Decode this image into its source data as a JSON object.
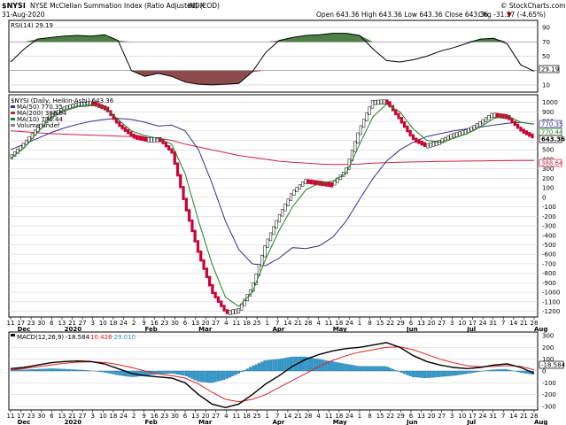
{
  "header": {
    "symbol": "$NYSI",
    "name": "NYSE McClellan Summation Index (Ratio Adjusted) (EOD)",
    "exchange": "INDX",
    "date": "31-Aug-2020",
    "ohlc": "Open 643.36  High 643.36  Low 643.36  Close 643.36",
    "chg": "Chg -31.37 (-4.65%)",
    "chg_arrow": "▼",
    "credit": "© StockCharts.com"
  },
  "rsi_panel": {
    "legend": "RSI(14) 29.19",
    "current_value_label": "29.19",
    "ticks": [
      90,
      70,
      50,
      30,
      10
    ],
    "overbought": 70,
    "oversold": 30
  },
  "price_panel": {
    "legend_main": "$NYSI (Daily, Heikin-Ashi) 643.36",
    "legend_ma50": "MA(50) 770.35",
    "legend_ma200": "MA(200) 388.64",
    "legend_ma10": "MA(10) 770.44",
    "legend_volume": "Volume undef",
    "labels": {
      "ma10": "770.44",
      "ma50": "770.35",
      "last": "643.36",
      "ma200": "388.64"
    },
    "ticks": [
      1000,
      900,
      800,
      700,
      600,
      500,
      400,
      300,
      200,
      100,
      0,
      -100,
      -200,
      -300,
      -400,
      -500,
      -600,
      -700,
      -800,
      -900,
      -1000,
      -1100,
      -1200
    ],
    "ylim": [
      -1260,
      1080
    ]
  },
  "macd_panel": {
    "legend_prefix": "MACD(12,26,9)",
    "macd_value": "-18.584",
    "signal_value": "10.426",
    "hist_value": "-29.010",
    "current_label": "-18.584",
    "ticks": [
      300,
      200,
      100,
      0,
      -100,
      -200,
      -300
    ],
    "ylim": [
      -330,
      330
    ]
  },
  "x_axis": {
    "day_labels": [
      "11",
      "17",
      "23",
      "30",
      "6",
      "13",
      "21",
      "27",
      "3",
      "10",
      "18",
      "24",
      "2",
      "9",
      "16",
      "23",
      "30",
      "6",
      "13",
      "20",
      "27",
      "4",
      "11",
      "18",
      "25",
      "1",
      "7",
      "14",
      "21",
      "28",
      "4",
      "11",
      "18",
      "24",
      "1",
      "8",
      "15",
      "22",
      "29",
      "6",
      "13",
      "20",
      "27",
      "3",
      "10",
      "17",
      "24",
      "31",
      "7",
      "14",
      "21",
      "28"
    ],
    "day_labels_macd": [
      "11",
      "17",
      "23",
      "30",
      "6",
      "13",
      "21",
      "27",
      "3",
      "10",
      "18",
      "24",
      "2",
      "9",
      "16",
      "23",
      "30",
      "6",
      "13",
      "20",
      "27",
      "4",
      "11",
      "18",
      "25",
      "1",
      "7",
      "14",
      "21",
      "28",
      "4",
      "11",
      "18",
      "24",
      "1",
      "8",
      "15",
      "22",
      "29",
      "6",
      "13",
      "20",
      "27",
      "3",
      "10",
      "17",
      "24",
      "31",
      "7",
      "14",
      "21",
      "28"
    ],
    "months": [
      "Dec",
      "2020",
      "Feb",
      "Mar",
      "Apr",
      "May",
      "Jun",
      "Jul",
      "Aug"
    ],
    "months_macd": [
      "Dec",
      "2020",
      "Feb",
      "Mar",
      "Apr",
      "May",
      "Jun",
      "Jul",
      "Aug"
    ]
  },
  "colors": {
    "up_candle": "#ffffff",
    "down_candle": "#cc0033",
    "ma10": "#208020",
    "ma50": "#303090",
    "ma200": "#cc2244",
    "rsi_fill_over": "#4f7f46",
    "rsi_fill_under": "#8c4a4a",
    "macd_line": "#000000",
    "signal_line": "#dd2222",
    "histogram": "#3399cc"
  },
  "chart_data": [
    {
      "type": "line",
      "name": "RSI(14)",
      "x": [
        "2019-12-05",
        "2019-12-12",
        "2019-12-19",
        "2019-12-26",
        "2020-01-02",
        "2020-01-09",
        "2020-01-16",
        "2020-01-23",
        "2020-01-30",
        "2020-02-06",
        "2020-02-13",
        "2020-02-20",
        "2020-02-27",
        "2020-03-05",
        "2020-03-12",
        "2020-03-19",
        "2020-03-26",
        "2020-04-02",
        "2020-04-09",
        "2020-04-16",
        "2020-04-23",
        "2020-04-30",
        "2020-05-07",
        "2020-05-14",
        "2020-05-21",
        "2020-05-28",
        "2020-06-04",
        "2020-06-11",
        "2020-06-18",
        "2020-06-25",
        "2020-07-02",
        "2020-07-09",
        "2020-07-16",
        "2020-07-23",
        "2020-07-30",
        "2020-08-06",
        "2020-08-13",
        "2020-08-20",
        "2020-08-27",
        "2020-08-31"
      ],
      "values": [
        42,
        60,
        74,
        76,
        78,
        79,
        78,
        80,
        72,
        30,
        22,
        26,
        22,
        14,
        11,
        10,
        11,
        12,
        28,
        55,
        72,
        76,
        79,
        80,
        82,
        82,
        79,
        60,
        44,
        42,
        45,
        50,
        57,
        62,
        68,
        74,
        75,
        67,
        38,
        29.19
      ],
      "ylim": [
        0,
        100
      ]
    },
    {
      "type": "line",
      "name": "$NYSI (Daily, Heikin-Ashi)",
      "x": [
        "2019-12-05",
        "2019-12-12",
        "2019-12-19",
        "2019-12-26",
        "2020-01-02",
        "2020-01-09",
        "2020-01-16",
        "2020-01-23",
        "2020-01-30",
        "2020-02-06",
        "2020-02-13",
        "2020-02-20",
        "2020-02-27",
        "2020-03-05",
        "2020-03-12",
        "2020-03-19",
        "2020-03-26",
        "2020-04-02",
        "2020-04-09",
        "2020-04-16",
        "2020-04-23",
        "2020-04-30",
        "2020-05-07",
        "2020-05-14",
        "2020-05-21",
        "2020-05-28",
        "2020-06-04",
        "2020-06-11",
        "2020-06-18",
        "2020-06-25",
        "2020-07-02",
        "2020-07-09",
        "2020-07-16",
        "2020-07-23",
        "2020-07-30",
        "2020-08-06",
        "2020-08-13",
        "2020-08-20",
        "2020-08-27",
        "2020-08-31"
      ],
      "series": [
        {
          "name": "$NYSI",
          "values": [
            440,
            580,
            740,
            870,
            950,
            990,
            1000,
            940,
            760,
            650,
            620,
            620,
            470,
            -100,
            -600,
            -1000,
            -1210,
            -1180,
            -950,
            -500,
            -200,
            50,
            180,
            160,
            140,
            280,
            700,
            1010,
            1020,
            830,
            620,
            550,
            590,
            660,
            700,
            780,
            880,
            860,
            720,
            643.36
          ]
        },
        {
          "name": "MA(10)",
          "values": [
            410,
            520,
            680,
            840,
            920,
            960,
            975,
            950,
            820,
            700,
            650,
            620,
            560,
            250,
            -250,
            -700,
            -1050,
            -1150,
            -1000,
            -650,
            -350,
            -100,
            80,
            150,
            170,
            250,
            560,
            850,
            980,
            900,
            720,
            600,
            580,
            620,
            670,
            740,
            830,
            860,
            790,
            770.44
          ]
        },
        {
          "name": "MA(50)",
          "values": [
            500,
            560,
            620,
            680,
            730,
            770,
            800,
            820,
            830,
            820,
            790,
            750,
            760,
            700,
            500,
            150,
            -250,
            -550,
            -700,
            -720,
            -640,
            -530,
            -540,
            -510,
            -420,
            -250,
            -20,
            200,
            380,
            500,
            580,
            640,
            670,
            700,
            720,
            740,
            760,
            780,
            790,
            770.35
          ]
        },
        {
          "name": "MA(200)",
          "values": [
            700,
            690,
            680,
            670,
            665,
            660,
            655,
            650,
            645,
            640,
            630,
            620,
            600,
            560,
            530,
            500,
            470,
            440,
            420,
            400,
            380,
            370,
            360,
            350,
            345,
            345,
            350,
            360,
            365,
            370,
            372,
            375,
            378,
            380,
            382,
            384,
            385,
            386,
            387,
            388.64
          ]
        }
      ],
      "ylim": [
        -1260,
        1080
      ]
    },
    {
      "type": "line",
      "name": "MACD(12,26,9)",
      "x": [
        "2019-12-05",
        "2019-12-12",
        "2019-12-19",
        "2019-12-26",
        "2020-01-02",
        "2020-01-09",
        "2020-01-16",
        "2020-01-23",
        "2020-01-30",
        "2020-02-06",
        "2020-02-13",
        "2020-02-20",
        "2020-02-27",
        "2020-03-05",
        "2020-03-12",
        "2020-03-19",
        "2020-03-26",
        "2020-04-02",
        "2020-04-09",
        "2020-04-16",
        "2020-04-23",
        "2020-04-30",
        "2020-05-07",
        "2020-05-14",
        "2020-05-21",
        "2020-05-28",
        "2020-06-04",
        "2020-06-11",
        "2020-06-18",
        "2020-06-25",
        "2020-07-02",
        "2020-07-09",
        "2020-07-16",
        "2020-07-23",
        "2020-07-30",
        "2020-08-06",
        "2020-08-13",
        "2020-08-20",
        "2020-08-27",
        "2020-08-31"
      ],
      "series": [
        {
          "name": "MACD",
          "values": [
            20,
            30,
            50,
            70,
            80,
            85,
            80,
            60,
            20,
            -20,
            -40,
            -50,
            -60,
            -100,
            -200,
            -280,
            -310,
            -280,
            -200,
            -110,
            -40,
            40,
            100,
            140,
            170,
            190,
            200,
            220,
            240,
            200,
            130,
            80,
            50,
            30,
            20,
            30,
            50,
            60,
            30,
            -18.584
          ]
        },
        {
          "name": "Signal",
          "values": [
            10,
            20,
            35,
            50,
            65,
            75,
            78,
            72,
            55,
            30,
            0,
            -25,
            -40,
            -60,
            -110,
            -180,
            -240,
            -260,
            -240,
            -200,
            -140,
            -80,
            -20,
            40,
            90,
            130,
            160,
            180,
            200,
            205,
            180,
            140,
            100,
            70,
            45,
            35,
            40,
            45,
            40,
            10.426
          ]
        },
        {
          "name": "Histogram",
          "values": [
            10,
            10,
            15,
            20,
            15,
            10,
            2,
            -12,
            -35,
            -50,
            -40,
            -25,
            -20,
            -40,
            -90,
            -100,
            -70,
            -20,
            40,
            90,
            100,
            120,
            120,
            100,
            80,
            60,
            40,
            40,
            40,
            -5,
            -50,
            -60,
            -50,
            -40,
            -25,
            -5,
            10,
            15,
            -10,
            -29.01
          ]
        }
      ],
      "ylim": [
        -330,
        330
      ]
    }
  ]
}
